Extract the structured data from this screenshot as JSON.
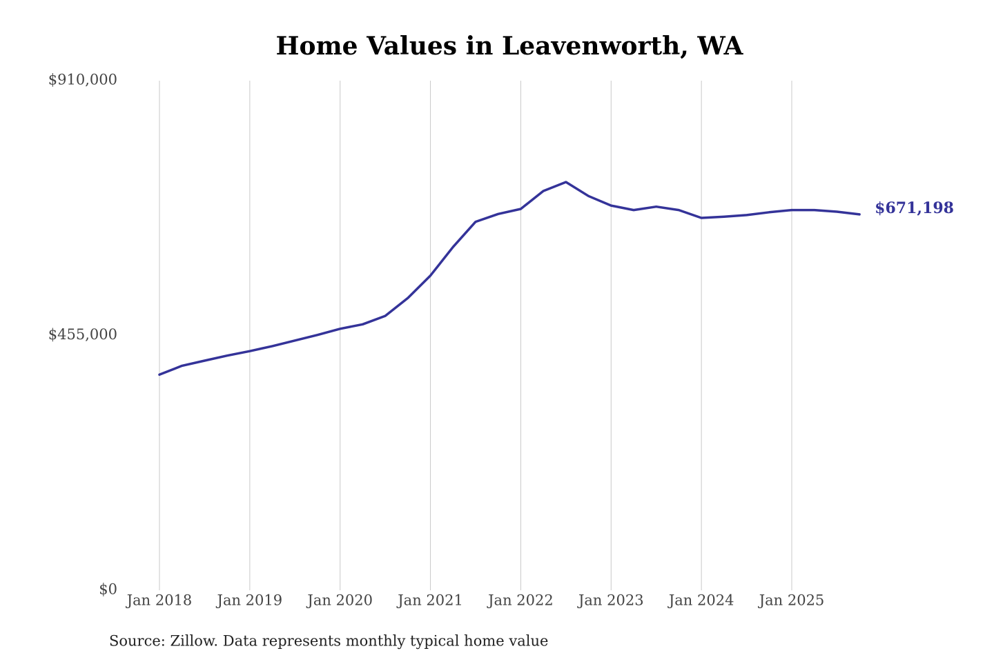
{
  "chart_data": {
    "type": "line",
    "title": "Home Values in Leavenworth, WA",
    "source": "Source: Zillow. Data represents monthly typical home value",
    "x": [
      2018,
      2018.25,
      2018.5,
      2018.75,
      2019,
      2019.25,
      2019.5,
      2019.75,
      2020,
      2020.25,
      2020.5,
      2020.75,
      2021,
      2021.25,
      2021.5,
      2021.75,
      2022,
      2022.25,
      2022.5,
      2022.75,
      2023,
      2023.25,
      2023.5,
      2023.75,
      2024,
      2024.25,
      2024.5,
      2024.75,
      2025,
      2025.25,
      2025.5,
      2025.75
    ],
    "series": [
      {
        "name": "Home value",
        "color": "#343399",
        "values": [
          385000,
          401000,
          410000,
          419000,
          427000,
          436000,
          446000,
          456000,
          467000,
          475000,
          490000,
          522000,
          562000,
          613000,
          658000,
          672000,
          681000,
          713000,
          729000,
          704000,
          687000,
          679000,
          685000,
          679000,
          665000,
          667000,
          670000,
          675000,
          679000,
          679000,
          676000,
          671198
        ],
        "value_labels": [
          null,
          null,
          null,
          null,
          null,
          null,
          null,
          null,
          null,
          null,
          null,
          null,
          null,
          null,
          null,
          null,
          null,
          null,
          null,
          null,
          null,
          null,
          null,
          null,
          null,
          null,
          null,
          null,
          null,
          null,
          null,
          "$671,198"
        ]
      }
    ],
    "xlim": [
      2018,
      2025.75
    ],
    "xticks": [
      {
        "value": 2018,
        "label": "Jan 2018"
      },
      {
        "value": 2019,
        "label": "Jan 2019"
      },
      {
        "value": 2020,
        "label": "Jan 2020"
      },
      {
        "value": 2021,
        "label": "Jan 2021"
      },
      {
        "value": 2022,
        "label": "Jan 2022"
      },
      {
        "value": 2023,
        "label": "Jan 2023"
      },
      {
        "value": 2024,
        "label": "Jan 2024"
      },
      {
        "value": 2025,
        "label": "Jan 2025"
      }
    ],
    "ylim": [
      0,
      910000
    ],
    "yticks": [
      {
        "value": 0,
        "label": "$0"
      },
      {
        "value": 455000,
        "label": "$455,000"
      },
      {
        "value": 910000,
        "label": "$910,000"
      }
    ],
    "grid": "x"
  }
}
